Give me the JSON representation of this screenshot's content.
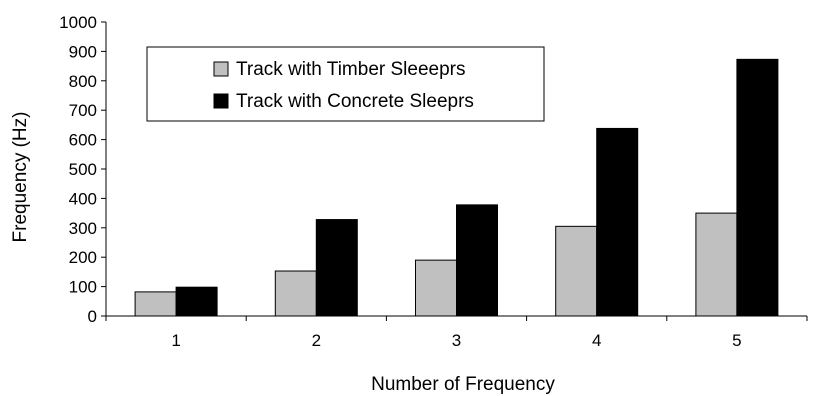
{
  "chart_data": {
    "type": "bar",
    "title": "",
    "xlabel": "Number of Frequency",
    "ylabel": "Frequency (Hz)",
    "categories": [
      "1",
      "2",
      "3",
      "4",
      "5"
    ],
    "ylim": [
      0,
      1000
    ],
    "yticks": [
      0,
      100,
      200,
      300,
      400,
      500,
      600,
      700,
      800,
      900,
      1000
    ],
    "grid": false,
    "legend_position": "top-left",
    "series": [
      {
        "name": "Track with Timber Sleeeprs",
        "color": "#c0c0c0",
        "values": [
          82,
          153,
          190,
          305,
          350
        ]
      },
      {
        "name": "Track with Concrete Sleeprs",
        "color": "#000000",
        "values": [
          98,
          328,
          378,
          638,
          873
        ]
      }
    ]
  }
}
